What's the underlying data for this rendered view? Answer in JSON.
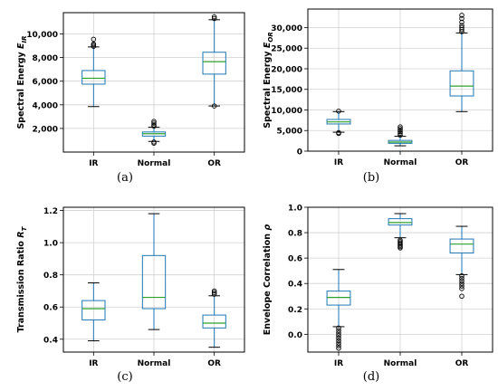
{
  "chart_data": [
    {
      "type": "boxplot",
      "panel_label": "(a)",
      "categories": [
        "IR",
        "Normal",
        "OR"
      ],
      "ylabel": "Spectral Energy E_IR",
      "ylabel_main": "Spectral Energy ",
      "ylabel_var": "E",
      "ylabel_sub": "IR",
      "ylim": [
        0,
        11800
      ],
      "yticks": [
        2000,
        4000,
        6000,
        8000,
        10000
      ],
      "ytick_labels": [
        "2,000",
        "4,000",
        "6,000",
        "8,000",
        "10,000"
      ],
      "grid": true,
      "boxes": [
        {
          "min": 3850,
          "q1": 5750,
          "median": 6250,
          "q3": 6900,
          "max": 8900,
          "outliers": [
            8950,
            9050,
            9150,
            9550
          ]
        },
        {
          "min": 900,
          "q1": 1350,
          "median": 1550,
          "q3": 1700,
          "max": 2100,
          "outliers": [
            750,
            850,
            2200,
            2300,
            2450,
            2600
          ]
        },
        {
          "min": 3900,
          "q1": 6600,
          "median": 7650,
          "q3": 8450,
          "max": 11200,
          "outliers": [
            3900,
            11300,
            11450
          ]
        }
      ]
    },
    {
      "type": "boxplot",
      "panel_label": "(b)",
      "categories": [
        "IR",
        "Normal",
        "OR"
      ],
      "ylabel": "Spectral Energy E_OR",
      "ylabel_main": "Spectral Energy ",
      "ylabel_var": "E",
      "ylabel_sub": "OR",
      "ylim": [
        0,
        34500
      ],
      "yticks": [
        0,
        5000,
        10000,
        15000,
        20000,
        25000,
        30000
      ],
      "ytick_labels": [
        "0",
        "5,000",
        "10,000",
        "15,000",
        "20,000",
        "25,000",
        "30,000"
      ],
      "grid": true,
      "boxes": [
        {
          "min": 4600,
          "q1": 6600,
          "median": 7100,
          "q3": 7700,
          "max": 9600,
          "outliers": [
            4300,
            4500,
            9700
          ]
        },
        {
          "min": 1300,
          "q1": 1900,
          "median": 2200,
          "q3": 2600,
          "max": 3600,
          "outliers": [
            3900,
            4300,
            4700,
            5100,
            5500,
            5900
          ]
        },
        {
          "min": 9600,
          "q1": 13400,
          "median": 15800,
          "q3": 19500,
          "max": 28700,
          "outliers": [
            29000,
            29500,
            30000,
            30500,
            31300,
            32200,
            33000
          ]
        }
      ]
    },
    {
      "type": "boxplot",
      "panel_label": "(c)",
      "categories": [
        "IR",
        "Normal",
        "OR"
      ],
      "ylabel": "Transmission Ratio R_T",
      "ylabel_main": "Transmission Ratio ",
      "ylabel_var": "R",
      "ylabel_sub": "T",
      "ylim": [
        0.32,
        1.22
      ],
      "yticks": [
        0.4,
        0.6,
        0.8,
        1.0,
        1.2
      ],
      "ytick_labels": [
        "0.4",
        "0.6",
        "0.8",
        "1.0",
        "1.2"
      ],
      "grid": true,
      "boxes": [
        {
          "min": 0.39,
          "q1": 0.52,
          "median": 0.59,
          "q3": 0.64,
          "max": 0.75,
          "outliers": []
        },
        {
          "min": 0.46,
          "q1": 0.59,
          "median": 0.66,
          "q3": 0.92,
          "max": 1.18,
          "outliers": []
        },
        {
          "min": 0.35,
          "q1": 0.47,
          "median": 0.5,
          "q3": 0.55,
          "max": 0.67,
          "outliers": [
            0.68,
            0.69,
            0.7
          ]
        }
      ]
    },
    {
      "type": "boxplot",
      "panel_label": "(d)",
      "categories": [
        "IR",
        "Normal",
        "OR"
      ],
      "ylabel": "Envelope Correlation ρ",
      "ylabel_main": "Envelope Correlation ",
      "ylabel_var": "ρ",
      "ylabel_sub": "",
      "ylim": [
        -0.14,
        1.0
      ],
      "yticks": [
        0.0,
        0.2,
        0.4,
        0.6,
        0.8,
        1.0
      ],
      "ytick_labels": [
        "0.0",
        "0.2",
        "0.4",
        "0.6",
        "0.8",
        "1.0"
      ],
      "grid": true,
      "boxes": [
        {
          "min": 0.06,
          "q1": 0.23,
          "median": 0.29,
          "q3": 0.34,
          "max": 0.51,
          "outliers": [
            0.05,
            0.03,
            0.01,
            -0.01,
            -0.03,
            -0.05,
            -0.07,
            -0.09,
            -0.11
          ]
        },
        {
          "min": 0.76,
          "q1": 0.86,
          "median": 0.88,
          "q3": 0.91,
          "max": 0.95,
          "outliers": [
            0.68,
            0.69,
            0.7,
            0.71,
            0.72,
            0.73,
            0.74
          ]
        },
        {
          "min": 0.47,
          "q1": 0.64,
          "median": 0.71,
          "q3": 0.75,
          "max": 0.85,
          "outliers": [
            0.3,
            0.36,
            0.38,
            0.4,
            0.42,
            0.44,
            0.46
          ]
        }
      ]
    }
  ]
}
